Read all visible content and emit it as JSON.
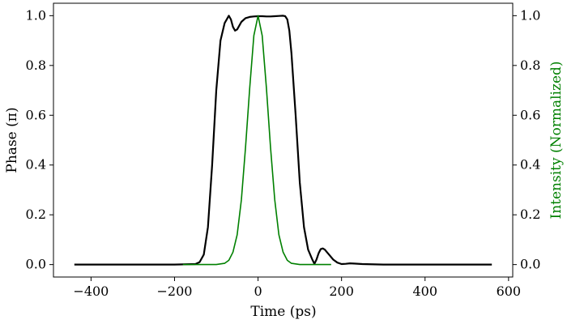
{
  "chart_data": {
    "type": "line",
    "xlabel": "Time (ps)",
    "ylabel_left": "Phase (π)",
    "ylabel_right": "Intensity (Normalized)",
    "xlim": [
      -490,
      610
    ],
    "ylim_left": [
      -0.05,
      1.05
    ],
    "ylim_right": [
      -0.05,
      1.05
    ],
    "x_ticks": [
      -400,
      -200,
      0,
      200,
      400,
      600
    ],
    "x_tick_labels": [
      "−400",
      "−200",
      "0",
      "200",
      "400",
      "600"
    ],
    "y_ticks": [
      0.0,
      0.2,
      0.4,
      0.6,
      0.8,
      1.0
    ],
    "y_tick_labels": [
      "0.0",
      "0.2",
      "0.4",
      "0.6",
      "0.8",
      "1.0"
    ],
    "grid": false,
    "colors": {
      "phase": "#000000",
      "intensity": "#008000"
    },
    "series": [
      {
        "axis": "left",
        "color": "#000000",
        "x": [
          -440,
          -300,
          -200,
          -150,
          -140,
          -130,
          -120,
          -110,
          -100,
          -90,
          -80,
          -70,
          -65,
          -60,
          -55,
          -50,
          -45,
          -40,
          -30,
          -20,
          -10,
          0,
          10,
          20,
          30,
          40,
          50,
          60,
          65,
          70,
          75,
          80,
          90,
          100,
          110,
          120,
          130,
          135,
          140,
          145,
          150,
          155,
          160,
          170,
          180,
          190,
          200,
          210,
          220,
          230,
          250,
          300,
          400,
          560
        ],
        "y": [
          0,
          0,
          0,
          0.002,
          0.01,
          0.04,
          0.15,
          0.4,
          0.7,
          0.9,
          0.97,
          1.0,
          0.985,
          0.955,
          0.94,
          0.945,
          0.96,
          0.975,
          0.99,
          0.995,
          0.997,
          0.998,
          0.998,
          0.997,
          0.997,
          0.998,
          0.999,
          1.0,
          0.998,
          0.985,
          0.94,
          0.85,
          0.6,
          0.33,
          0.15,
          0.06,
          0.02,
          0.003,
          0.02,
          0.045,
          0.062,
          0.065,
          0.06,
          0.04,
          0.02,
          0.008,
          0.002,
          0.003,
          0.005,
          0.004,
          0.002,
          0,
          0,
          0
        ]
      },
      {
        "axis": "right",
        "color": "#008000",
        "x": [
          -180,
          -100,
          -80,
          -70,
          -60,
          -50,
          -40,
          -30,
          -20,
          -10,
          0,
          10,
          20,
          30,
          40,
          50,
          60,
          70,
          80,
          100,
          175
        ],
        "y": [
          0,
          0,
          0.005,
          0.017,
          0.05,
          0.12,
          0.26,
          0.47,
          0.71,
          0.92,
          1.0,
          0.92,
          0.71,
          0.47,
          0.26,
          0.12,
          0.05,
          0.017,
          0.005,
          0,
          0
        ]
      }
    ]
  }
}
